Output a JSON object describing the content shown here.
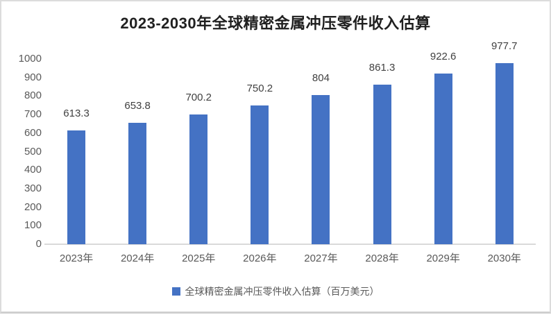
{
  "chart_data": {
    "type": "bar",
    "title": "2023-2030年全球精密金属冲压零件收入估算",
    "categories": [
      "2023年",
      "2024年",
      "2025年",
      "2026年",
      "2027年",
      "2028年",
      "2029年",
      "2030年"
    ],
    "series": [
      {
        "name": "全球精密金属冲压零件收入估算（百万美元）",
        "values": [
          613.3,
          653.8,
          700.2,
          750.2,
          804,
          861.3,
          922.6,
          977.7
        ]
      }
    ],
    "data_labels": [
      "613.3",
      "653.8",
      "700.2",
      "750.2",
      "804",
      "861.3",
      "922.6",
      "977.7"
    ],
    "xlabel": "",
    "ylabel": "",
    "ylim": [
      0,
      1000
    ],
    "yticks": [
      0,
      100,
      200,
      300,
      400,
      500,
      600,
      700,
      800,
      900,
      1000
    ],
    "grid": false,
    "legend_position": "bottom",
    "colors": {
      "bar": "#4472C4",
      "title_text": "#202020",
      "axis_text": "#595959",
      "data_label_text": "#404040",
      "axis_line": "#d9d9d9",
      "frame_border": "#dcdcdc",
      "background": "#ffffff"
    }
  },
  "legend": {
    "label": "全球精密金属冲压零件收入估算（百万美元）"
  }
}
